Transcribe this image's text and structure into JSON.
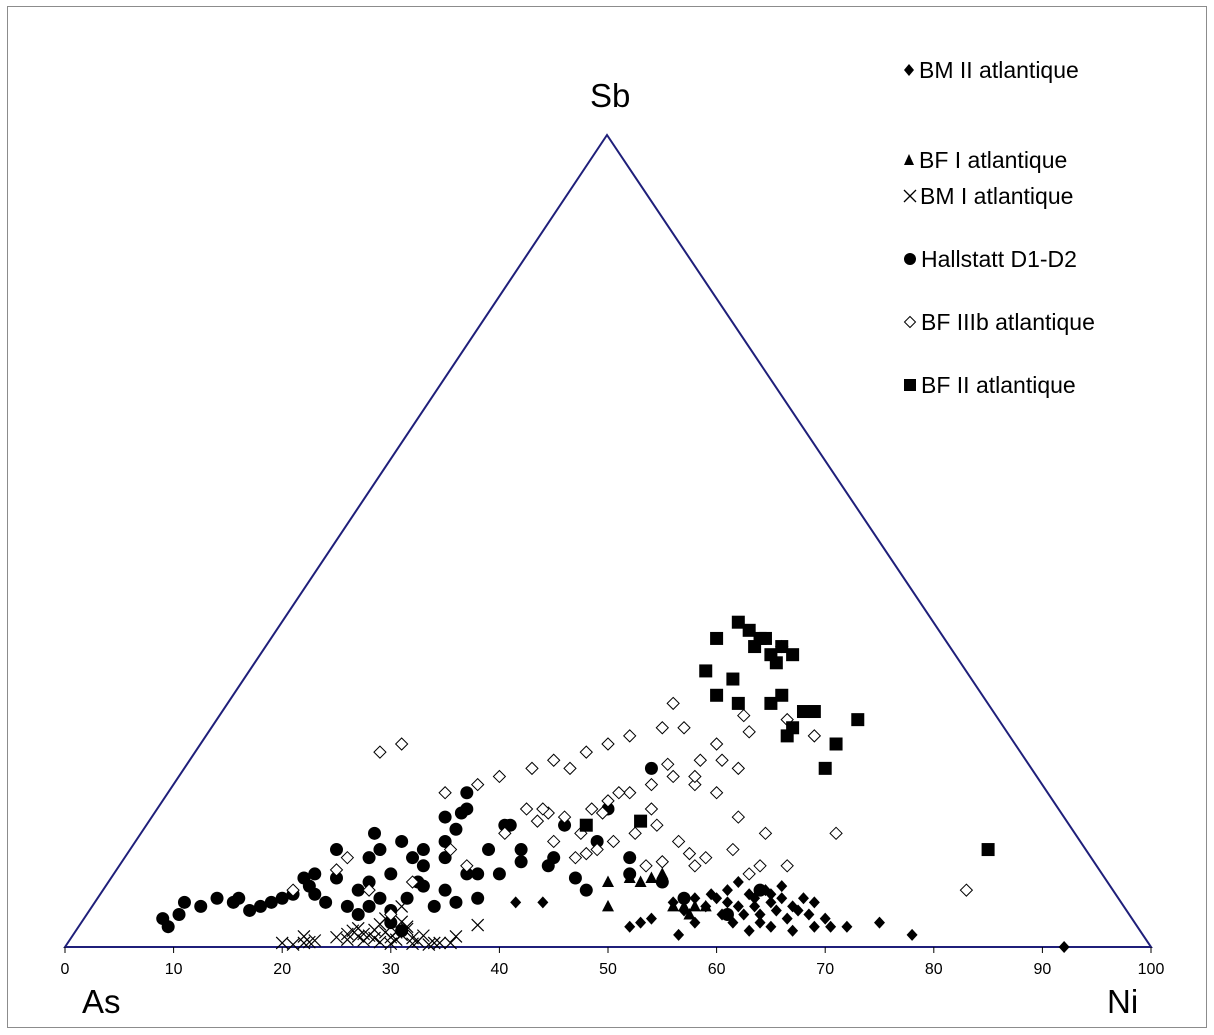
{
  "chart_data": {
    "type": "scatter",
    "subtype": "ternary",
    "title": "",
    "corner_labels": {
      "top": "Sb",
      "left": "As",
      "right": "Ni"
    },
    "axis": {
      "ticks": [
        "0",
        "10",
        "20",
        "30",
        "40",
        "50",
        "60",
        "70",
        "80",
        "90",
        "100"
      ],
      "range": [
        0,
        100
      ]
    },
    "grid": false,
    "legend_position": "top-right",
    "plot_colors": {
      "frame": "#1f1f7a",
      "markers": "#000000"
    },
    "series": [
      {
        "name": "BM II atlantique",
        "marker": "diamond-filled",
        "points": [
          [
            41.5,
            5.5
          ],
          [
            44,
            5.5
          ],
          [
            52,
            2.5
          ],
          [
            53,
            3
          ],
          [
            54,
            3.5
          ],
          [
            56,
            5.5
          ],
          [
            57,
            4.5
          ],
          [
            58,
            3
          ],
          [
            59,
            5
          ],
          [
            60,
            6
          ],
          [
            61,
            7
          ],
          [
            62,
            5
          ],
          [
            62.5,
            4
          ],
          [
            63,
            6.5
          ],
          [
            63.5,
            5
          ],
          [
            64,
            4
          ],
          [
            64.5,
            7
          ],
          [
            65,
            5.5
          ],
          [
            65.5,
            4.5
          ],
          [
            66,
            6
          ],
          [
            66.5,
            3.5
          ],
          [
            67,
            5
          ],
          [
            67.5,
            4.5
          ],
          [
            68,
            6
          ],
          [
            68.5,
            4
          ],
          [
            69,
            5.5
          ],
          [
            70,
            3.5
          ],
          [
            61.5,
            3
          ],
          [
            60.5,
            4
          ],
          [
            64,
            3
          ],
          [
            66,
            7.5
          ],
          [
            62,
            8
          ],
          [
            59.5,
            6.5
          ],
          [
            63,
            2
          ],
          [
            65,
            2.5
          ],
          [
            67,
            2
          ],
          [
            69,
            2.5
          ],
          [
            70.5,
            2.5
          ],
          [
            72,
            2.5
          ],
          [
            75,
            3
          ],
          [
            78,
            1.5
          ],
          [
            56.5,
            1.5
          ],
          [
            58,
            6
          ],
          [
            61,
            5.5
          ],
          [
            63.5,
            6
          ],
          [
            65,
            6.5
          ],
          [
            92,
            0
          ]
        ]
      },
      {
        "name": "BF I atlantique",
        "marker": "triangle-filled",
        "points": [
          [
            50,
            8
          ],
          [
            52,
            8.5
          ],
          [
            53,
            8
          ],
          [
            54,
            8.5
          ],
          [
            55,
            9
          ],
          [
            50,
            5
          ],
          [
            57,
            5
          ],
          [
            58,
            5
          ],
          [
            59,
            5
          ],
          [
            56,
            5
          ],
          [
            57.5,
            4
          ]
        ]
      },
      {
        "name": "BM I atlantique",
        "marker": "x",
        "points": [
          [
            20,
            0.5
          ],
          [
            21,
            0.3
          ],
          [
            22,
            1.3
          ],
          [
            22.5,
            0.6
          ],
          [
            23,
            0.8
          ],
          [
            25,
            1.2
          ],
          [
            26,
            1.6
          ],
          [
            26.5,
            2
          ],
          [
            27,
            1.3
          ],
          [
            27.5,
            0.8
          ],
          [
            28,
            1.4
          ],
          [
            28.5,
            1.1
          ],
          [
            29,
            0.6
          ],
          [
            29.5,
            1.8
          ],
          [
            30,
            1.2
          ],
          [
            30.5,
            0.9
          ],
          [
            31,
            1.5
          ],
          [
            31.5,
            2.2
          ],
          [
            32,
            1.1
          ],
          [
            32.5,
            0.7
          ],
          [
            33,
            1.4
          ],
          [
            33.5,
            0.3
          ],
          [
            34,
            0.5
          ],
          [
            35.5,
            0.5
          ],
          [
            36,
            1.3
          ],
          [
            38,
            2.7
          ],
          [
            27,
            2.3
          ],
          [
            29,
            2.8
          ],
          [
            31,
            3.1
          ],
          [
            29.5,
            3.5
          ],
          [
            31.5,
            2.5
          ],
          [
            28.5,
            2.1
          ],
          [
            30.5,
            1.8
          ],
          [
            27.5,
            1.6
          ],
          [
            32,
            0.4
          ],
          [
            30,
            0.4
          ],
          [
            26,
            0.9
          ],
          [
            34.5,
            0.5
          ],
          [
            22,
            0.5
          ],
          [
            31,
            5
          ]
        ]
      },
      {
        "name": "Hallstatt D1-D2",
        "marker": "circle-filled",
        "points": [
          [
            11,
            5.5
          ],
          [
            9,
            3.5
          ],
          [
            9.5,
            2.5
          ],
          [
            10.5,
            4
          ],
          [
            12.5,
            5
          ],
          [
            14,
            6
          ],
          [
            15.5,
            5.5
          ],
          [
            16,
            6
          ],
          [
            17,
            4.5
          ],
          [
            18,
            5
          ],
          [
            19,
            5.5
          ],
          [
            20,
            6
          ],
          [
            21,
            6.5
          ],
          [
            22.5,
            7.5
          ],
          [
            23,
            9
          ],
          [
            27,
            7
          ],
          [
            28,
            8
          ],
          [
            30,
            9
          ],
          [
            32,
            11
          ],
          [
            33,
            12
          ],
          [
            35,
            13
          ],
          [
            36,
            14.5
          ],
          [
            36.5,
            16.5
          ],
          [
            37,
            19
          ],
          [
            40.5,
            15
          ],
          [
            42,
            12
          ],
          [
            45,
            11
          ],
          [
            49,
            13
          ],
          [
            50,
            17
          ],
          [
            54,
            22
          ],
          [
            52,
            9
          ],
          [
            47,
            8.5
          ],
          [
            44.5,
            10
          ],
          [
            42,
            10.5
          ],
          [
            40,
            9
          ],
          [
            37,
            9
          ],
          [
            33,
            7.5
          ],
          [
            31.5,
            6
          ],
          [
            32.5,
            8
          ],
          [
            29,
            6
          ],
          [
            28,
            5
          ],
          [
            27,
            4
          ],
          [
            30,
            4.5
          ],
          [
            35,
            7
          ],
          [
            38,
            9
          ],
          [
            48,
            7
          ],
          [
            52,
            11
          ],
          [
            55,
            8
          ],
          [
            57,
            6
          ],
          [
            61,
            4
          ],
          [
            64,
            7
          ],
          [
            34,
            5
          ],
          [
            36,
            5.5
          ],
          [
            38,
            6
          ],
          [
            30,
            3
          ],
          [
            31,
            2
          ],
          [
            23,
            6.5
          ],
          [
            25,
            8.5
          ],
          [
            28,
            11
          ],
          [
            29,
            12
          ],
          [
            31,
            13
          ],
          [
            33,
            10
          ],
          [
            35,
            11
          ],
          [
            26,
            5
          ],
          [
            24,
            5.5
          ],
          [
            39,
            12
          ],
          [
            41,
            15
          ],
          [
            46,
            15
          ],
          [
            35,
            16
          ],
          [
            37,
            17
          ],
          [
            28.5,
            14
          ],
          [
            25,
            12
          ],
          [
            22,
            8.5
          ]
        ]
      },
      {
        "name": "BF IIIb atlantique",
        "marker": "diamond-open",
        "points": [
          [
            66,
            37
          ],
          [
            31,
            25
          ],
          [
            29,
            24
          ],
          [
            38,
            20
          ],
          [
            40,
            21
          ],
          [
            43,
            22
          ],
          [
            45,
            23
          ],
          [
            46.5,
            22
          ],
          [
            48,
            24
          ],
          [
            50,
            25
          ],
          [
            52,
            26
          ],
          [
            55,
            27
          ],
          [
            57,
            27
          ],
          [
            60,
            25
          ],
          [
            44.5,
            16.5
          ],
          [
            43.5,
            15.5
          ],
          [
            44,
            17
          ],
          [
            46,
            16
          ],
          [
            48.5,
            17
          ],
          [
            50,
            18
          ],
          [
            52,
            19
          ],
          [
            54,
            20
          ],
          [
            56,
            21
          ],
          [
            58,
            20
          ],
          [
            60,
            19
          ],
          [
            62,
            16
          ],
          [
            64.5,
            14
          ],
          [
            64,
            10
          ],
          [
            58,
            10
          ],
          [
            71,
            14
          ],
          [
            83,
            7
          ],
          [
            66.5,
            10
          ],
          [
            63,
            9
          ],
          [
            47.5,
            14
          ],
          [
            49,
            12
          ],
          [
            50.5,
            13
          ],
          [
            52.5,
            14
          ],
          [
            54.5,
            15
          ],
          [
            56.5,
            13
          ],
          [
            59,
            11
          ],
          [
            61.5,
            12
          ],
          [
            55,
            10.5
          ],
          [
            57.5,
            11.5
          ],
          [
            53.5,
            10
          ],
          [
            48,
            11.5
          ],
          [
            47,
            11
          ],
          [
            45,
            13
          ],
          [
            49.5,
            16.5
          ],
          [
            51,
            19
          ],
          [
            55.5,
            22.5
          ],
          [
            58.5,
            23
          ],
          [
            62,
            22
          ],
          [
            66.5,
            28
          ],
          [
            69,
            26
          ],
          [
            62.5,
            28.5
          ],
          [
            63,
            26.5
          ],
          [
            60.5,
            23
          ],
          [
            58,
            21
          ],
          [
            54,
            17
          ],
          [
            25,
            9.5
          ],
          [
            28,
            7
          ],
          [
            21,
            7
          ],
          [
            37,
            10
          ],
          [
            26,
            11
          ],
          [
            35,
            19
          ],
          [
            30,
            4
          ],
          [
            40.5,
            14
          ],
          [
            32,
            8
          ],
          [
            56,
            30
          ],
          [
            42.5,
            17
          ],
          [
            35.5,
            12
          ]
        ]
      },
      {
        "name": "BF II atlantique",
        "marker": "square-filled",
        "points": [
          [
            59,
            34
          ],
          [
            60,
            38
          ],
          [
            62,
            40
          ],
          [
            63,
            39
          ],
          [
            64,
            38
          ],
          [
            65,
            36
          ],
          [
            66,
            37
          ],
          [
            67,
            36
          ],
          [
            65.5,
            35
          ],
          [
            64.5,
            38
          ],
          [
            63.5,
            37
          ],
          [
            61.5,
            33
          ],
          [
            60,
            31
          ],
          [
            62,
            30
          ],
          [
            65,
            30
          ],
          [
            66,
            31
          ],
          [
            68,
            29
          ],
          [
            69,
            29
          ],
          [
            71,
            25
          ],
          [
            70,
            22
          ],
          [
            73,
            28
          ],
          [
            67,
            27
          ],
          [
            66.5,
            26
          ],
          [
            85,
            12
          ],
          [
            53,
            15.5
          ],
          [
            48,
            15
          ]
        ]
      }
    ]
  },
  "legend": {
    "items": [
      {
        "label": "BM II atlantique",
        "icon": "diamond-filled-icon"
      },
      {
        "label": "BF I atlantique",
        "icon": "triangle-filled-icon"
      },
      {
        "label": "BM I atlantique",
        "icon": "x-icon"
      },
      {
        "label": "Hallstatt D1-D2",
        "icon": "circle-filled-icon"
      },
      {
        "label": "BF IIIb atlantique",
        "icon": "diamond-open-icon"
      },
      {
        "label": "BF II atlantique",
        "icon": "square-filled-icon"
      }
    ]
  }
}
